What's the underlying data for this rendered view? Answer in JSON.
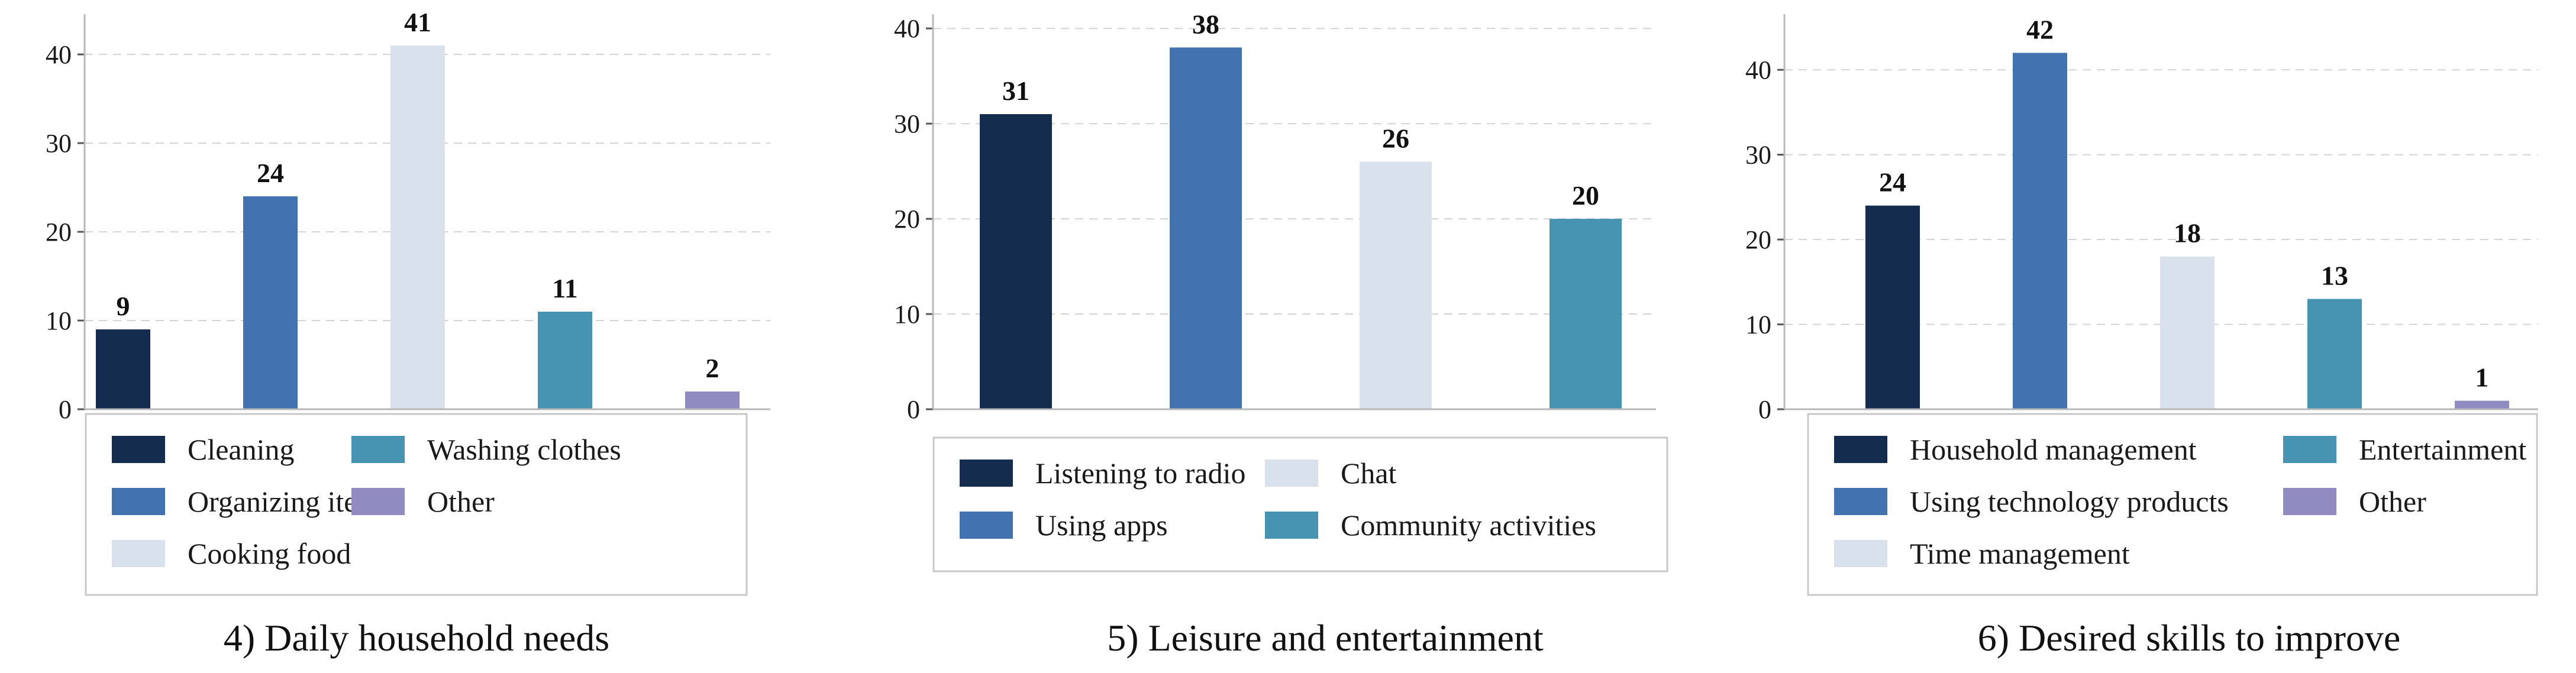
{
  "colors": {
    "navy": "#142d4f",
    "blue": "#4272b0",
    "pale": "#d9e1ed",
    "teal": "#4793b2",
    "purple": "#908bc0"
  },
  "chart_data": [
    {
      "type": "bar",
      "caption": "4) Daily household needs",
      "categories": [
        "Cleaning",
        "Organizing items",
        "Cooking food",
        "Washing clothes",
        "Other"
      ],
      "values": [
        9,
        24,
        41,
        11,
        2
      ],
      "colors": [
        "#142d4f",
        "#4272b0",
        "#d9e1ed",
        "#4793b2",
        "#908bc0"
      ],
      "ylim": [
        0,
        44
      ],
      "yticks": [
        0,
        10,
        20,
        30,
        40
      ],
      "grid": true,
      "legend": {
        "placement": "bottom",
        "columns": 2,
        "items": [
          "Cleaning",
          "Organizing items",
          "Cooking food",
          "Washing clothes",
          "Other"
        ]
      }
    },
    {
      "type": "bar",
      "caption": "5) Leisure and entertainment",
      "categories": [
        "Listening to radio",
        "Using apps",
        "Chat",
        "Community activities"
      ],
      "values": [
        31,
        38,
        26,
        20
      ],
      "colors": [
        "#142d4f",
        "#4272b0",
        "#d9e1ed",
        "#4793b2"
      ],
      "ylim": [
        0,
        41
      ],
      "yticks": [
        0,
        10,
        20,
        30,
        40
      ],
      "grid": true,
      "legend": {
        "placement": "bottom",
        "columns": 2,
        "items": [
          "Listening to radio",
          "Using apps",
          "Chat",
          "Community activities"
        ]
      }
    },
    {
      "type": "bar",
      "caption": "6) Desired skills to improve",
      "categories": [
        "Household management",
        "Using technology products",
        "Time management",
        "Entertainment",
        "Other"
      ],
      "values": [
        24,
        42,
        18,
        13,
        1
      ],
      "colors": [
        "#142d4f",
        "#4272b0",
        "#d9e1ed",
        "#4793b2",
        "#908bc0"
      ],
      "ylim": [
        0,
        46
      ],
      "yticks": [
        0,
        10,
        20,
        30,
        40
      ],
      "grid": true,
      "legend": {
        "placement": "bottom",
        "columns": 2,
        "items": [
          "Household management",
          "Using technology products",
          "Time management",
          "Entertainment",
          "Other"
        ]
      }
    }
  ]
}
